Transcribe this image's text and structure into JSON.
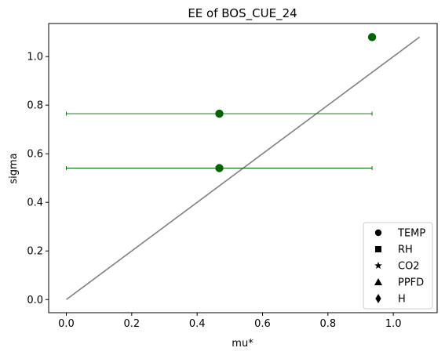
{
  "chart_data": {
    "type": "scatter",
    "title": "EE of BOS_CUE_24",
    "xlabel": "mu*",
    "ylabel": "sigma",
    "xlim": [
      -0.054,
      1.134
    ],
    "ylim": [
      -0.054,
      1.136
    ],
    "xticks": [
      0.0,
      0.2,
      0.4,
      0.6,
      0.8,
      1.0
    ],
    "yticks": [
      0.0,
      0.2,
      0.4,
      0.6,
      0.8,
      1.0
    ],
    "xtick_labels": [
      "0.0",
      "0.2",
      "0.4",
      "0.6",
      "0.8",
      "1.0"
    ],
    "ytick_labels": [
      "0.0",
      "0.2",
      "0.4",
      "0.6",
      "0.8",
      "1.0"
    ],
    "grid": false,
    "legend_position": "lower-right",
    "reference_line": {
      "x": [
        0.0,
        1.08
      ],
      "y": [
        0.0,
        1.08
      ],
      "color": "#808080"
    },
    "points": [
      {
        "x": 0.935,
        "y": 1.08,
        "xerr_low": null,
        "xerr_high": null
      },
      {
        "x": 0.468,
        "y": 0.765,
        "xerr_low": 0.0,
        "xerr_high": 0.935
      },
      {
        "x": 0.468,
        "y": 0.541,
        "xerr_low": 0.0,
        "xerr_high": 0.935
      }
    ],
    "point_color": "#006400",
    "legend": [
      {
        "label": "TEMP",
        "marker": "circle"
      },
      {
        "label": "RH",
        "marker": "square"
      },
      {
        "label": "CO2",
        "marker": "star"
      },
      {
        "label": "PPFD",
        "marker": "triangle"
      },
      {
        "label": "H",
        "marker": "diamond"
      }
    ]
  }
}
